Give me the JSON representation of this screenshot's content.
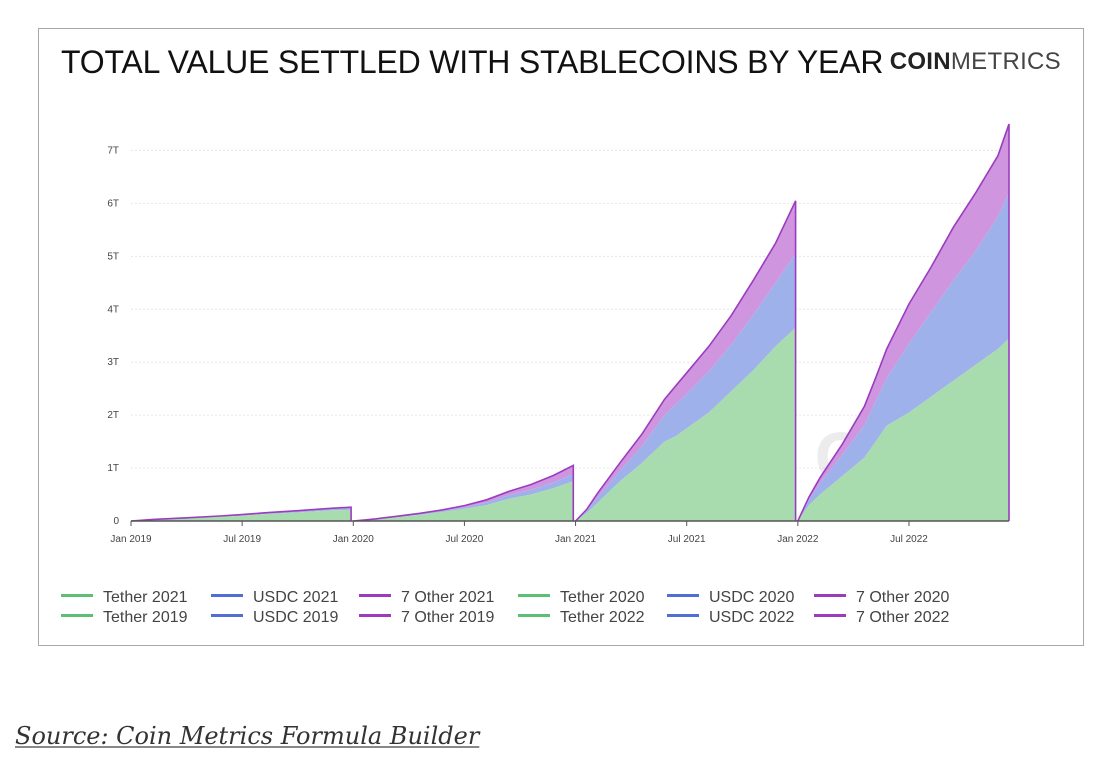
{
  "page": {
    "title": "TOTAL VALUE SETTLED WITH STABLECOINS BY YEAR",
    "logo_bold": "COIN",
    "logo_rest": "METRICS",
    "watermark": "CM",
    "source": "Source: Coin Metrics Formula Builder"
  },
  "colors": {
    "tether": "#5cbf73",
    "tether_fill": "#a8dcae",
    "usdc": "#4f6fd6",
    "usdc_fill": "#9fb1ea",
    "other": "#9b3cbf",
    "other_fill": "#cf95de"
  },
  "chart_data": {
    "type": "area",
    "stacked": true,
    "title": "TOTAL VALUE SETTLED WITH STABLECOINS BY YEAR",
    "y_ticks": [
      {
        "value": 0,
        "label": "0"
      },
      {
        "value": 1,
        "label": "1T"
      },
      {
        "value": 2,
        "label": "2T"
      },
      {
        "value": 3,
        "label": "3T"
      },
      {
        "value": 4,
        "label": "4T"
      },
      {
        "value": 5,
        "label": "5T"
      },
      {
        "value": 6,
        "label": "6T"
      },
      {
        "value": 7,
        "label": "7T"
      }
    ],
    "x_ticks": [
      {
        "value": 2019.0,
        "label": "Jan 2019"
      },
      {
        "value": 2019.5,
        "label": "Jul 2019"
      },
      {
        "value": 2020.0,
        "label": "Jan 2020"
      },
      {
        "value": 2020.5,
        "label": "Jul 2020"
      },
      {
        "value": 2021.0,
        "label": "Jan 2021"
      },
      {
        "value": 2021.5,
        "label": "Jul 2021"
      },
      {
        "value": 2022.0,
        "label": "Jan 2022"
      },
      {
        "value": 2022.5,
        "label": "Jul 2022"
      }
    ],
    "xlim": [
      2019.0,
      2022.95
    ],
    "ylim": [
      0,
      7.5
    ],
    "grid": true,
    "legend_position": "bottom",
    "legend": [
      {
        "label": "Tether 2021",
        "key": "tether"
      },
      {
        "label": "USDC 2021",
        "key": "usdc"
      },
      {
        "label": "7 Other 2021",
        "key": "other"
      },
      {
        "label": "Tether 2020",
        "key": "tether"
      },
      {
        "label": "USDC 2020",
        "key": "usdc"
      },
      {
        "label": "7 Other 2020",
        "key": "other"
      },
      {
        "label": "Tether 2019",
        "key": "tether"
      },
      {
        "label": "USDC 2019",
        "key": "usdc"
      },
      {
        "label": "7 Other 2019",
        "key": "other"
      },
      {
        "label": "Tether 2022",
        "key": "tether"
      },
      {
        "label": "USDC 2022",
        "key": "usdc"
      },
      {
        "label": "7 Other 2022",
        "key": "other"
      }
    ],
    "years": [
      {
        "year": "2019",
        "x": [
          2019.0,
          2019.1,
          2019.25,
          2019.4,
          2019.5,
          2019.6,
          2019.75,
          2019.9,
          2019.99
        ],
        "tether": [
          0.0,
          0.03,
          0.05,
          0.08,
          0.1,
          0.13,
          0.16,
          0.2,
          0.21
        ],
        "usdc": [
          0.0,
          0.0,
          0.005,
          0.01,
          0.01,
          0.015,
          0.02,
          0.025,
          0.03
        ],
        "other": [
          0.0,
          0.0,
          0.005,
          0.005,
          0.01,
          0.01,
          0.015,
          0.015,
          0.02
        ]
      },
      {
        "year": "2020",
        "x": [
          2020.0,
          2020.1,
          2020.2,
          2020.3,
          2020.4,
          2020.5,
          2020.6,
          2020.7,
          2020.8,
          2020.9,
          2020.99
        ],
        "tether": [
          0.0,
          0.03,
          0.07,
          0.12,
          0.17,
          0.23,
          0.3,
          0.42,
          0.5,
          0.62,
          0.75
        ],
        "usdc": [
          0.0,
          0.005,
          0.01,
          0.015,
          0.02,
          0.03,
          0.05,
          0.07,
          0.09,
          0.11,
          0.13
        ],
        "other": [
          0.0,
          0.005,
          0.01,
          0.01,
          0.02,
          0.03,
          0.05,
          0.07,
          0.1,
          0.13,
          0.17
        ]
      },
      {
        "year": "2021",
        "x": [
          2021.0,
          2021.05,
          2021.1,
          2021.2,
          2021.3,
          2021.4,
          2021.45,
          2021.5,
          2021.6,
          2021.7,
          2021.8,
          2021.9,
          2021.99
        ],
        "tether": [
          0.0,
          0.15,
          0.35,
          0.75,
          1.1,
          1.5,
          1.6,
          1.75,
          2.05,
          2.45,
          2.85,
          3.3,
          3.65
        ],
        "usdc": [
          0.0,
          0.04,
          0.1,
          0.2,
          0.32,
          0.5,
          0.6,
          0.65,
          0.78,
          0.88,
          1.05,
          1.2,
          1.4
        ],
        "other": [
          0.0,
          0.03,
          0.08,
          0.15,
          0.23,
          0.3,
          0.35,
          0.4,
          0.47,
          0.55,
          0.65,
          0.75,
          1.0
        ]
      },
      {
        "year": "2022",
        "x": [
          2022.0,
          2022.05,
          2022.1,
          2022.2,
          2022.3,
          2022.35,
          2022.4,
          2022.5,
          2022.6,
          2022.7,
          2022.8,
          2022.9,
          2022.95
        ],
        "tether": [
          0.0,
          0.3,
          0.5,
          0.85,
          1.2,
          1.5,
          1.8,
          2.05,
          2.35,
          2.65,
          2.95,
          3.25,
          3.45
        ],
        "usdc": [
          0.0,
          0.1,
          0.22,
          0.4,
          0.62,
          0.75,
          0.9,
          1.3,
          1.6,
          1.9,
          2.15,
          2.5,
          2.75
        ],
        "other": [
          0.0,
          0.05,
          0.1,
          0.2,
          0.35,
          0.45,
          0.55,
          0.75,
          0.85,
          1.0,
          1.1,
          1.15,
          1.3
        ]
      }
    ]
  }
}
